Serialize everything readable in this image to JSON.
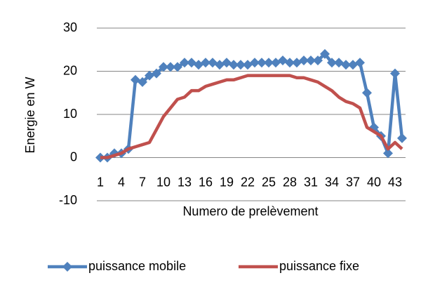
{
  "chart_data": {
    "type": "line",
    "x_label": "Numero de prelèvement",
    "y_label": "Energie en W",
    "categories": [
      1,
      null,
      null,
      4,
      null,
      null,
      7,
      null,
      null,
      10,
      null,
      null,
      13,
      null,
      null,
      16,
      null,
      null,
      19,
      null,
      null,
      22,
      null,
      null,
      25,
      null,
      null,
      28,
      null,
      null,
      31,
      null,
      null,
      34,
      null,
      null,
      37,
      null,
      null,
      40,
      null,
      null,
      43,
      null
    ],
    "series": [
      {
        "name": "puissance mobile",
        "color": "#4f81bd",
        "marker": "diamond",
        "values": [
          0,
          0,
          1,
          1,
          2,
          18,
          17.5,
          19,
          19.5,
          21,
          21,
          21,
          22,
          22,
          21.5,
          22,
          22,
          21.5,
          22,
          21.5,
          21.5,
          21.5,
          22,
          22,
          22,
          22,
          22.5,
          22,
          22,
          22.5,
          22.5,
          22.5,
          24,
          22,
          22,
          21.5,
          21.5,
          22,
          15,
          7,
          5,
          1,
          19.5,
          4.5
        ]
      },
      {
        "name": "puissance fixe",
        "color": "#c0504d",
        "marker": "none",
        "values": [
          0,
          0,
          0.5,
          1,
          2,
          2.5,
          3,
          3.5,
          6.5,
          9.5,
          11.5,
          13.5,
          14,
          15.5,
          15.5,
          16.5,
          17,
          17.5,
          18,
          18,
          18.5,
          19,
          19,
          19,
          19,
          19,
          19,
          19,
          18.5,
          18.5,
          18,
          17.5,
          16.5,
          15.5,
          14,
          13,
          12.5,
          11.5,
          7,
          6,
          5,
          2,
          3.5,
          2
        ]
      }
    ],
    "ylim": [
      -10,
      30
    ],
    "yticks": [
      -10,
      0,
      10,
      20,
      30
    ],
    "grid": true,
    "legend": "bottom"
  }
}
